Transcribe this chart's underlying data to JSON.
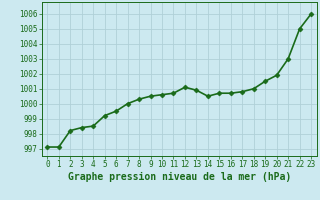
{
  "x": [
    0,
    1,
    2,
    3,
    4,
    5,
    6,
    7,
    8,
    9,
    10,
    11,
    12,
    13,
    14,
    15,
    16,
    17,
    18,
    19,
    20,
    21,
    22,
    23
  ],
  "y": [
    997.1,
    997.1,
    998.2,
    998.4,
    998.5,
    999.2,
    999.5,
    1000.0,
    1000.3,
    1000.5,
    1000.6,
    1000.7,
    1001.1,
    1000.9,
    1000.5,
    1000.7,
    1000.7,
    1000.8,
    1001.0,
    1001.5,
    1001.9,
    1003.0,
    1005.0,
    1006.0
  ],
  "line_color": "#1a6b1a",
  "marker": "D",
  "marker_size": 2.5,
  "bg_color": "#cce9f0",
  "grid_color": "#b0d0d8",
  "ylim": [
    996.5,
    1006.8
  ],
  "xlim": [
    -0.5,
    23.5
  ],
  "yticks": [
    997,
    998,
    999,
    1000,
    1001,
    1002,
    1003,
    1004,
    1005,
    1006
  ],
  "xticks": [
    0,
    1,
    2,
    3,
    4,
    5,
    6,
    7,
    8,
    9,
    10,
    11,
    12,
    13,
    14,
    15,
    16,
    17,
    18,
    19,
    20,
    21,
    22,
    23
  ],
  "xlabel": "Graphe pression niveau de la mer (hPa)",
  "xlabel_fontsize": 7,
  "tick_fontsize": 5.5,
  "line_width": 1.2
}
